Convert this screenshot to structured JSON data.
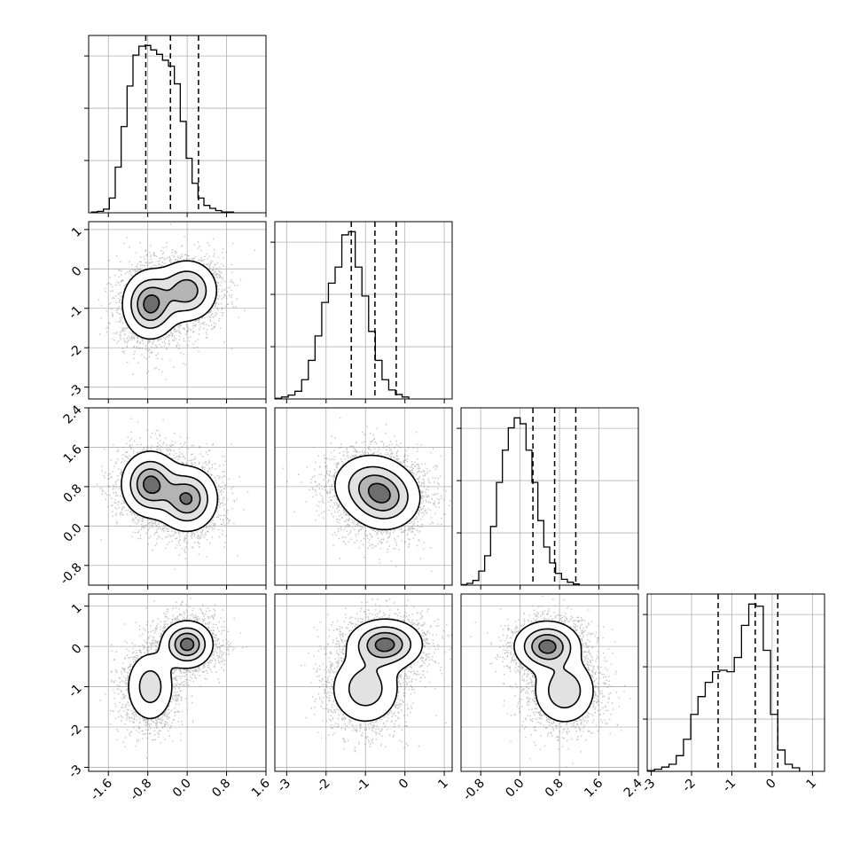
{
  "chart_data": {
    "type": "corner",
    "grid": true,
    "histogram_line_color": "#000000",
    "quantile_line_style": "dashed",
    "density_colormap": [
      "#ffffff",
      "#000000"
    ],
    "variables": [
      {
        "range": [
          -2.0,
          1.6
        ],
        "ticks": [
          "-1.6",
          "-0.8",
          "0.0",
          "0.8",
          "1.6"
        ],
        "tick_values": [
          -1.6,
          -0.8,
          0.0,
          0.8,
          1.6
        ],
        "quantiles": [
          -0.84,
          -0.34,
          0.23
        ]
      },
      {
        "range": [
          -3.3,
          1.2
        ],
        "ticks": [
          "-3",
          "-2",
          "-1",
          "0",
          "1"
        ],
        "tick_values": [
          -3,
          -2,
          -1,
          0,
          1
        ],
        "quantiles": [
          -1.36,
          -0.76,
          -0.22
        ]
      },
      {
        "range": [
          -1.2,
          2.4
        ],
        "ticks": [
          "-0.8",
          "0.0",
          "0.8",
          "1.6",
          "2.4"
        ],
        "tick_values": [
          -0.8,
          0.0,
          0.8,
          1.6,
          2.4
        ],
        "quantiles": [
          0.26,
          0.7,
          1.13
        ]
      },
      {
        "range": [
          -3.1,
          1.3
        ],
        "ticks": [
          "-3",
          "-2",
          "-1",
          "0",
          "1"
        ],
        "tick_values": [
          -3,
          -2,
          -1,
          0,
          1
        ],
        "quantiles": [
          -1.34,
          -0.42,
          0.14
        ]
      }
    ],
    "histograms": [
      {
        "variable": 0,
        "bins_start": -1.94,
        "bin_width": 0.12,
        "counts": [
          1,
          2,
          5,
          20,
          62,
          117,
          172,
          214,
          226,
          227,
          221,
          215,
          207,
          199,
          175,
          124,
          74,
          40,
          20,
          10,
          6,
          3,
          1,
          1
        ]
      },
      {
        "variable": 1,
        "bins_start": -3.3,
        "bin_width": 0.17,
        "counts": [
          1,
          3,
          6,
          12,
          30,
          60,
          98,
          150,
          180,
          205,
          255,
          260,
          205,
          160,
          105,
          60,
          30,
          14,
          7,
          3
        ]
      },
      {
        "variable": 2,
        "bins_start": -1.2,
        "bin_width": 0.12,
        "counts": [
          1,
          3,
          8,
          24,
          50,
          100,
          175,
          230,
          268,
          285,
          275,
          230,
          175,
          110,
          65,
          38,
          20,
          10,
          5,
          2
        ]
      },
      {
        "variable": 3,
        "bins_start": -3.1,
        "bin_width": 0.18,
        "counts": [
          1,
          3,
          6,
          10,
          22,
          45,
          80,
          105,
          125,
          140,
          142,
          140,
          160,
          205,
          235,
          232,
          170,
          80,
          30,
          10,
          5
        ]
      }
    ],
    "density_panels": [
      {
        "x": 0,
        "y": 1,
        "modes": [
          {
            "mx": -0.75,
            "my": -0.9,
            "sx": 0.27,
            "sy": 0.42,
            "w": 0.55
          },
          {
            "mx": 0.0,
            "my": -0.55,
            "sx": 0.3,
            "sy": 0.38,
            "w": 0.45
          }
        ]
      },
      {
        "x": 0,
        "y": 2,
        "modes": [
          {
            "mx": -0.75,
            "my": 0.85,
            "sx": 0.28,
            "sy": 0.32,
            "w": 0.5
          },
          {
            "mx": 0.0,
            "my": 0.55,
            "sx": 0.3,
            "sy": 0.32,
            "w": 0.5
          }
        ]
      },
      {
        "x": 1,
        "y": 2,
        "modes": [
          {
            "mx": -0.9,
            "my": 0.85,
            "sx": 0.48,
            "sy": 0.32,
            "w": 0.45
          },
          {
            "mx": -0.5,
            "my": 0.55,
            "sx": 0.45,
            "sy": 0.32,
            "w": 0.55
          }
        ]
      },
      {
        "x": 0,
        "y": 3,
        "modes": [
          {
            "mx": -0.75,
            "my": -1.0,
            "sx": 0.25,
            "sy": 0.45,
            "w": 0.45
          },
          {
            "mx": 0.0,
            "my": 0.05,
            "sx": 0.25,
            "sy": 0.28,
            "w": 0.55
          }
        ]
      },
      {
        "x": 1,
        "y": 3,
        "modes": [
          {
            "mx": -1.0,
            "my": -1.05,
            "sx": 0.45,
            "sy": 0.45,
            "w": 0.45
          },
          {
            "mx": -0.5,
            "my": 0.05,
            "sx": 0.45,
            "sy": 0.3,
            "w": 0.55
          }
        ]
      },
      {
        "x": 2,
        "y": 3,
        "modes": [
          {
            "mx": 0.9,
            "my": -1.1,
            "sx": 0.32,
            "sy": 0.42,
            "w": 0.45
          },
          {
            "mx": 0.55,
            "my": 0.0,
            "sx": 0.32,
            "sy": 0.3,
            "w": 0.55
          }
        ]
      }
    ]
  }
}
